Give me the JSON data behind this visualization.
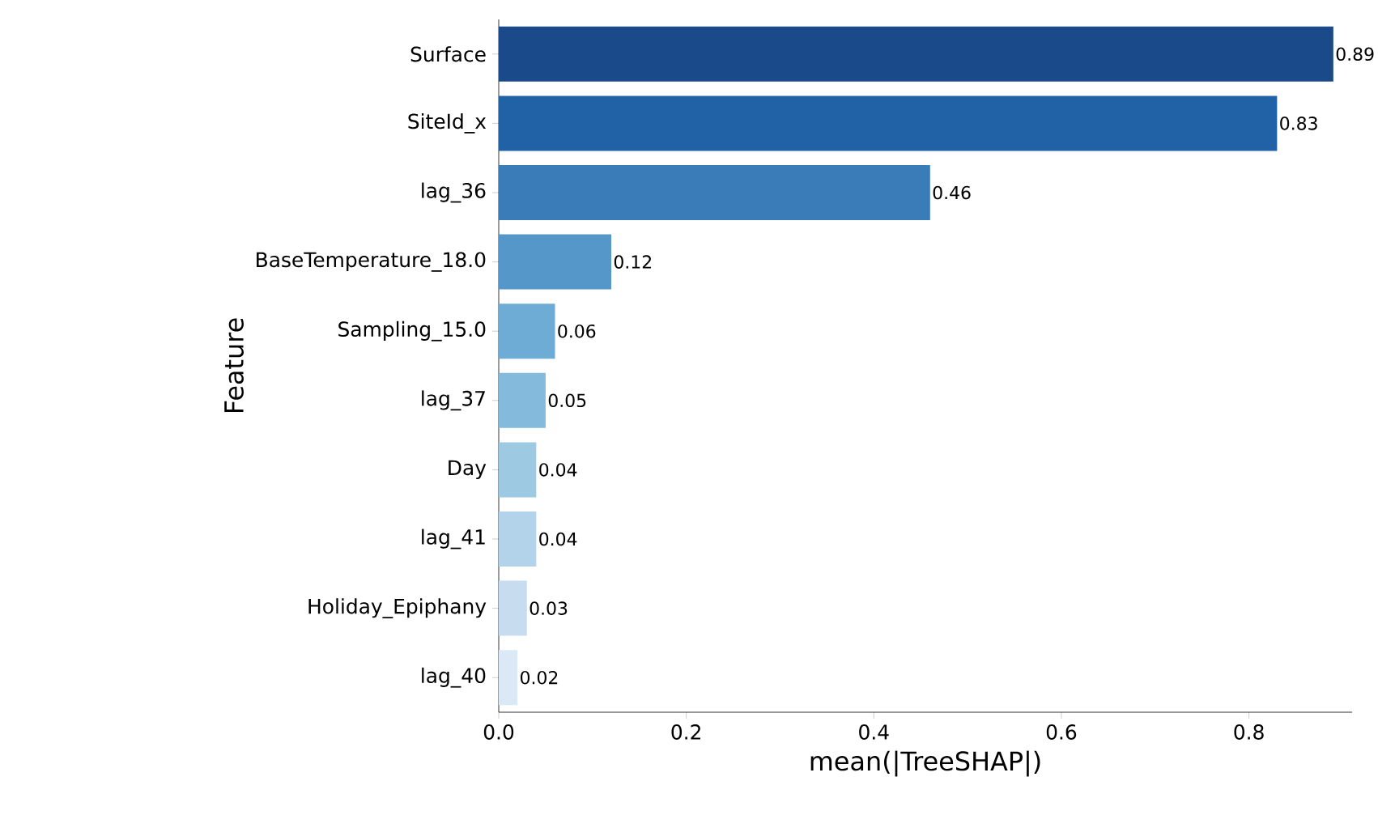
{
  "chart_data": {
    "type": "bar",
    "orientation": "horizontal",
    "xlabel": "mean(|TreeSHAP|)",
    "ylabel": "Feature",
    "categories": [
      "Surface",
      "SiteId_x",
      "lag_36",
      "BaseTemperature_18.0",
      "Sampling_15.0",
      "lag_37",
      "Day",
      "lag_41",
      "Holiday_Epiphany",
      "lag_40"
    ],
    "values": [
      0.89,
      0.83,
      0.46,
      0.12,
      0.06,
      0.05,
      0.04,
      0.04,
      0.03,
      0.02
    ],
    "colors": [
      "#1a4a8a",
      "#2161a6",
      "#3a7cb8",
      "#5697c9",
      "#6eabd5",
      "#84badc",
      "#9dc9e3",
      "#b2d3e9",
      "#c7dcef",
      "#dbe9f6"
    ],
    "data_labels": true,
    "xlim": [
      0,
      0.91
    ],
    "xticks": [
      {
        "value": 0,
        "label": "0.0"
      },
      0.2,
      0.4,
      0.6,
      0.8
    ],
    "grid": false
  }
}
